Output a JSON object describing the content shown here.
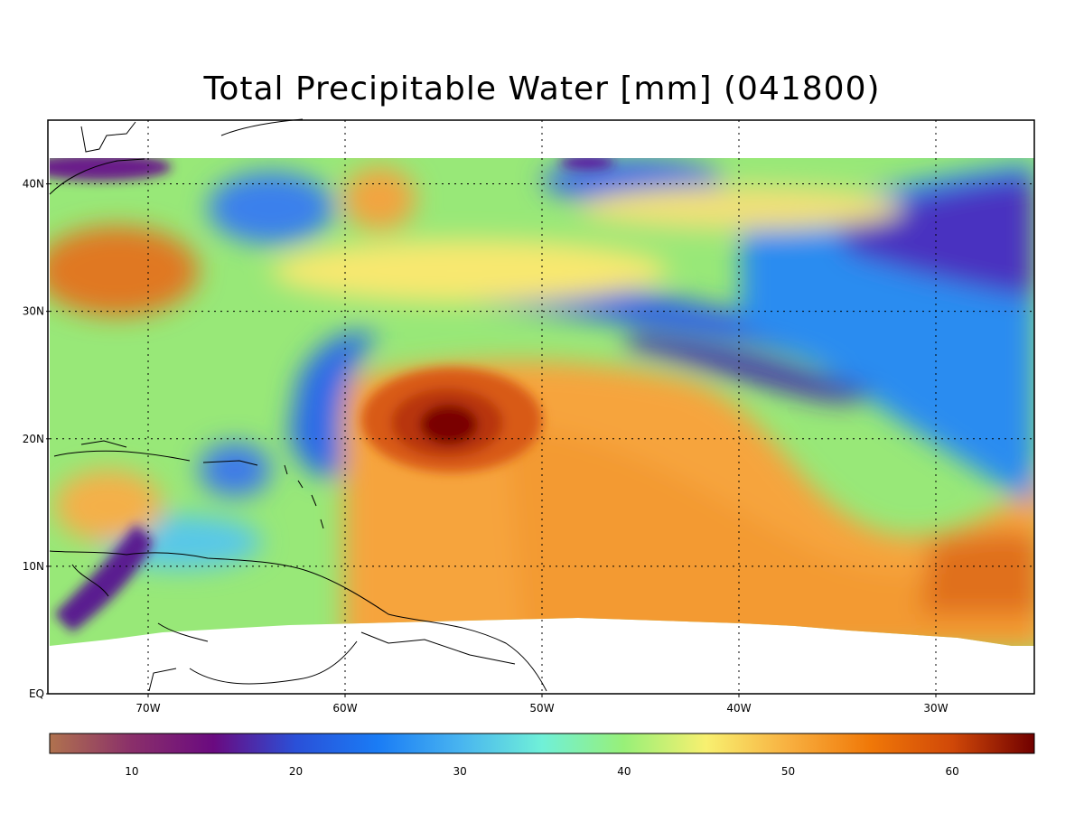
{
  "title": "Total Precipitable Water [mm]  (041800)",
  "map": {
    "lon_range": [
      -75,
      -25
    ],
    "lat_range": [
      0,
      45
    ],
    "data_lat_top": 42,
    "lat_ticks": [
      {
        "value": 40,
        "label": "40N"
      },
      {
        "value": 30,
        "label": "30N"
      },
      {
        "value": 20,
        "label": "20N"
      },
      {
        "value": 10,
        "label": "10N"
      },
      {
        "value": 0,
        "label": "EQ"
      }
    ],
    "lon_ticks": [
      {
        "value": -70,
        "label": "70W"
      },
      {
        "value": -60,
        "label": "60W"
      },
      {
        "value": -50,
        "label": "50W"
      },
      {
        "value": -40,
        "label": "40W"
      },
      {
        "value": -30,
        "label": "30W"
      }
    ],
    "gridlines": "dotted"
  },
  "colorbar": {
    "range": [
      5,
      65
    ],
    "ticks": [
      {
        "value": 10,
        "label": "10"
      },
      {
        "value": 20,
        "label": "20"
      },
      {
        "value": 30,
        "label": "30"
      },
      {
        "value": 40,
        "label": "40"
      },
      {
        "value": 50,
        "label": "50"
      },
      {
        "value": 60,
        "label": "60"
      }
    ],
    "colormap": [
      "#b0724e",
      "#8a2f6a",
      "#6a0a80",
      "#2a50d8",
      "#1a7cf5",
      "#48b4f0",
      "#70f0d8",
      "#98f078",
      "#f8f070",
      "#f8b040",
      "#f07808",
      "#d04808",
      "#700000"
    ]
  },
  "features": {
    "hurricane_center": {
      "lon": -54.5,
      "lat": 21,
      "value_mm": 65
    }
  }
}
